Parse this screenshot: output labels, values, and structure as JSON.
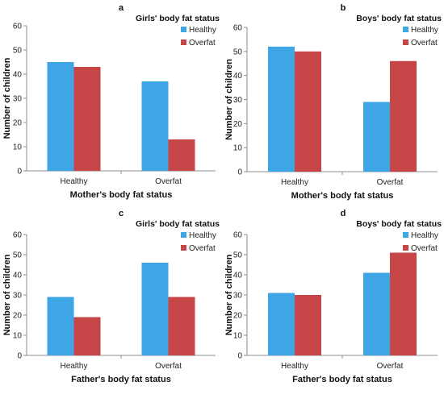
{
  "colors": {
    "healthy": "#3fa6e6",
    "overfat": "#c64546"
  },
  "chart_data": [
    {
      "type": "bar",
      "panel": "a",
      "legend_title": "Girls' body fat status",
      "xlabel": "Mother's body fat status",
      "ylabel": "Number of children",
      "categories": [
        "Healthy",
        "Overfat"
      ],
      "series": [
        {
          "name": "Healthy",
          "values": [
            45,
            37
          ]
        },
        {
          "name": "Overfat",
          "values": [
            43,
            13
          ]
        }
      ],
      "ylim": [
        0,
        60
      ],
      "yticks": [
        "0",
        "10",
        "20",
        "30",
        "40",
        "50",
        "60"
      ],
      "grid": false,
      "legend_position": "top-right"
    },
    {
      "type": "bar",
      "panel": "b",
      "legend_title": "Boys' body fat status",
      "xlabel": "Mother's body fat status",
      "ylabel": "Number of children",
      "categories": [
        "Healthy",
        "Overfat"
      ],
      "series": [
        {
          "name": "Healthy",
          "values": [
            52,
            29
          ]
        },
        {
          "name": "Overfat",
          "values": [
            50,
            46
          ]
        }
      ],
      "ylim": [
        0,
        60
      ],
      "yticks": [
        "0",
        "10",
        "20",
        "30",
        "40",
        "50",
        "60"
      ],
      "grid": false,
      "legend_position": "top-right"
    },
    {
      "type": "bar",
      "panel": "c",
      "legend_title": "Girls' body fat status",
      "xlabel": "Father's body fat status",
      "ylabel": "Number of children",
      "categories": [
        "Healthy",
        "Overfat"
      ],
      "series": [
        {
          "name": "Healthy",
          "values": [
            29,
            46
          ]
        },
        {
          "name": "Overfat",
          "values": [
            19,
            29
          ]
        }
      ],
      "ylim": [
        0,
        60
      ],
      "yticks": [
        "0",
        "10",
        "20",
        "30",
        "40",
        "50",
        "60"
      ],
      "grid": false,
      "legend_position": "top-right"
    },
    {
      "type": "bar",
      "panel": "d",
      "legend_title": "Boys' body fat status",
      "xlabel": "Father's body fat status",
      "ylabel": "Number of children",
      "categories": [
        "Healthy",
        "Overfat"
      ],
      "series": [
        {
          "name": "Healthy",
          "values": [
            31,
            41
          ]
        },
        {
          "name": "Overfat",
          "values": [
            30,
            51
          ]
        }
      ],
      "ylim": [
        0,
        60
      ],
      "yticks": [
        "0",
        "10",
        "20",
        "30",
        "40",
        "50",
        "60"
      ],
      "grid": false,
      "legend_position": "top-right"
    }
  ]
}
